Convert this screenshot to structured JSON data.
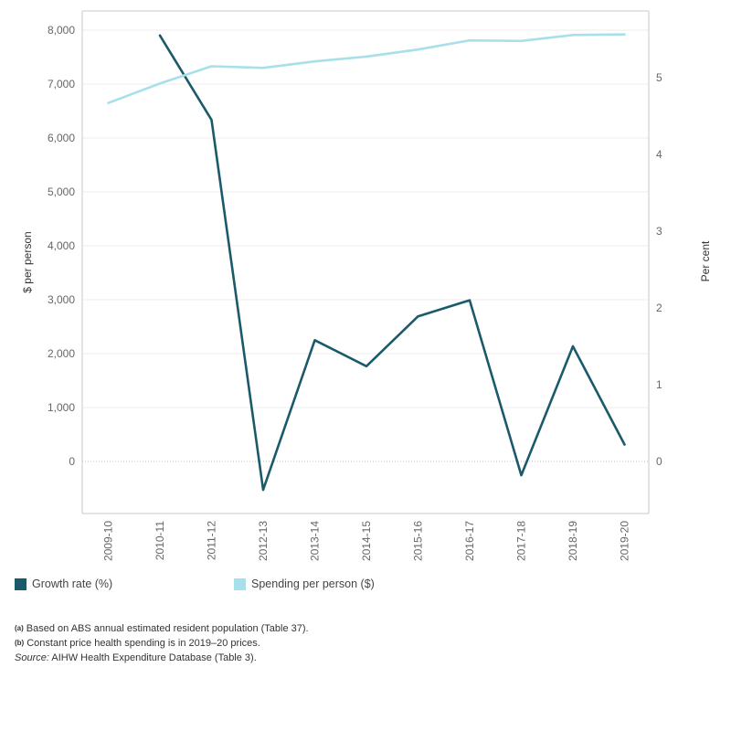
{
  "colors": {
    "growth": "#1b5a6b",
    "spending": "#a8e0ea",
    "axis": "#c8c8c8",
    "gridline": "#eeeeee",
    "zero_line": "#bbbbbb"
  },
  "chart_data": {
    "type": "line",
    "categories": [
      "2009-10",
      "2010-11",
      "2011-12",
      "2012-13",
      "2013-14",
      "2014-15",
      "2015-16",
      "2016-17",
      "2017-18",
      "2018-19",
      "2019-20"
    ],
    "series": [
      {
        "name": "Growth rate (%)",
        "axis": "right",
        "color": "#1b5a6b",
        "values": [
          null,
          5.55,
          4.45,
          -0.37,
          1.58,
          1.24,
          1.89,
          2.1,
          -0.18,
          1.5,
          0.22
        ]
      },
      {
        "name": "Spending per person ($)",
        "axis": "left",
        "color": "#a8e0ea",
        "values": [
          6650,
          7010,
          7330,
          7300,
          7420,
          7510,
          7640,
          7810,
          7800,
          7910,
          7920
        ]
      }
    ],
    "ylabel": "$ per person",
    "y2label": "Per cent",
    "ylim": [
      -1000,
      8300
    ],
    "y2lim": [
      -0.7,
      5.85
    ],
    "yticks": [
      "0",
      "1,000",
      "2,000",
      "3,000",
      "4,000",
      "5,000",
      "6,000",
      "7,000",
      "8,000"
    ],
    "y2ticks": [
      "0",
      "1",
      "2",
      "3",
      "4",
      "5"
    ],
    "grid": true,
    "legend_position": "bottom"
  },
  "legend": [
    {
      "label": "Growth rate (%)",
      "color": "#1b5a6b"
    },
    {
      "label": "Spending per person ($)",
      "color": "#a8e0ea"
    }
  ],
  "notes": {
    "a_marker": "(a)",
    "a_text": "Based on ABS annual estimated resident population (Table 37).",
    "b_marker": "(b)",
    "b_text": "Constant price health spending is in 2019–20 prices.",
    "source_label": "Source:",
    "source_text": "AIHW Health Expenditure Database (Table 3)."
  }
}
